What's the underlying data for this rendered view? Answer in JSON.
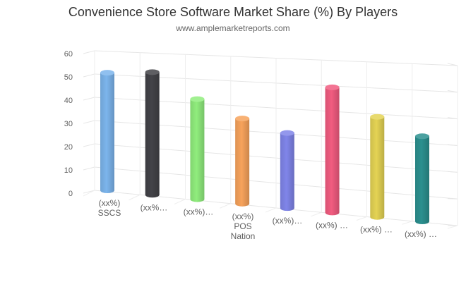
{
  "chart_data": {
    "type": "bar",
    "title": "Convenience Store Software Market Share (%) By Players",
    "subtitle": "www.amplemarketreports.com",
    "xlabel": "",
    "ylabel": "",
    "ylim": [
      0,
      60
    ],
    "yticks": [
      0,
      10,
      20,
      30,
      40,
      50,
      60
    ],
    "grid": true,
    "legend": "none",
    "style": "3d-cylinder",
    "categories": [
      "(xx%) SSCS",
      "(xx%…",
      "(xx%)…",
      "(xx%) POS Nation",
      "(xx%)…",
      "(xx%) …",
      "(xx%) …",
      "(xx%) …"
    ],
    "values": [
      47,
      49,
      40,
      34,
      30,
      50,
      40,
      34
    ],
    "colors": [
      "#7cb5ec",
      "#434348",
      "#90ed7d",
      "#f7a35c",
      "#8085e9",
      "#f15c80",
      "#e4d354",
      "#2b908f"
    ]
  }
}
